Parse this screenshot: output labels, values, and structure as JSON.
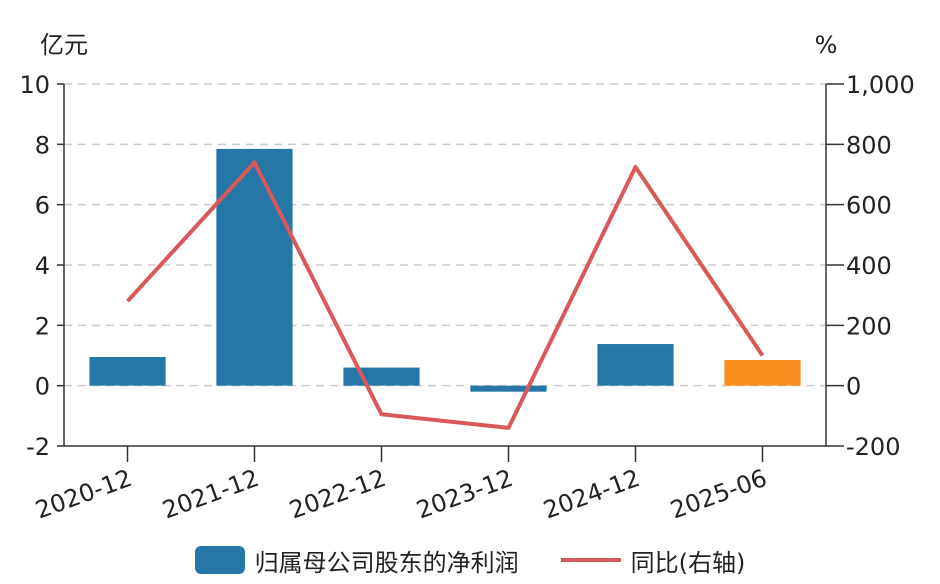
{
  "colors": {
    "bar": "#2577a6",
    "bar_highlight": "#f78e1e",
    "line": "#d9585a",
    "grid": "#cccccc",
    "axis": "#333333"
  },
  "chart_data": {
    "type": "bar",
    "categories": [
      "2020-12",
      "2021-12",
      "2022-12",
      "2023-12",
      "2024-12",
      "2025-06"
    ],
    "series": [
      {
        "name": "归属母公司股东的净利润",
        "type": "bar",
        "axis": "left",
        "values": [
          0.95,
          7.85,
          0.6,
          -0.2,
          1.38,
          0.85
        ]
      },
      {
        "name": "同比(右轴)",
        "type": "line",
        "axis": "right",
        "values": [
          280,
          740,
          -95,
          -140,
          725,
          100
        ]
      }
    ],
    "highlight_index": 5,
    "left_unit": "亿元",
    "right_unit": "%",
    "ylim_left": [
      -2,
      10
    ],
    "ylim_right": [
      -200,
      1000
    ],
    "yticks_left": [
      "-2",
      "0",
      "2",
      "4",
      "6",
      "8",
      "10"
    ],
    "yticks_right": [
      "-200",
      "0",
      "200",
      "400",
      "600",
      "800",
      "1,000"
    ],
    "grid": true,
    "legend_position": "bottom"
  }
}
